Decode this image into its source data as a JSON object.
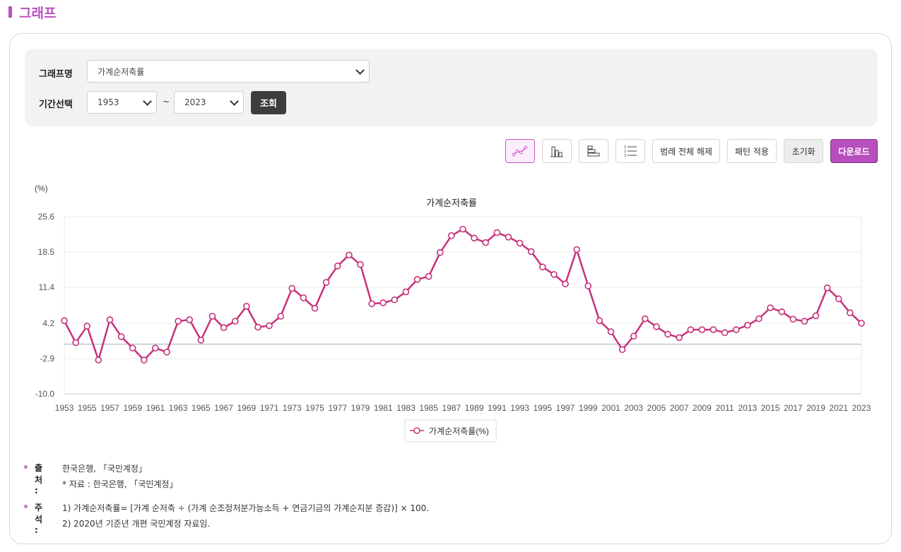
{
  "section": {
    "title": "그래프"
  },
  "search": {
    "graph_label": "그래프명",
    "graph_value": "가계순저축률",
    "period_label": "기간선택",
    "start_year": "1953",
    "end_year": "2023",
    "tilde": "~",
    "search_button": "조회"
  },
  "toolbar": {
    "line_icon": "line-chart-icon",
    "bar_icon": "bar-chart-icon",
    "hbar_icon": "horizontal-bar-chart-icon",
    "list_icon": "numbered-list-icon",
    "legend_clear": "범례 전체 해제",
    "pattern": "패턴 적용",
    "reset": "초기화",
    "download": "다운로드"
  },
  "chart_data": {
    "type": "line",
    "title": "가계순저축률",
    "unit_label": "(%)",
    "ylim": [
      -10.0,
      25.6
    ],
    "yticks": [
      "25.6",
      "18.5",
      "11.4",
      "4.2",
      "-2.9",
      "-10.0"
    ],
    "x": [
      1953,
      1954,
      1955,
      1956,
      1957,
      1958,
      1959,
      1960,
      1961,
      1962,
      1963,
      1964,
      1965,
      1966,
      1967,
      1968,
      1969,
      1970,
      1971,
      1972,
      1973,
      1974,
      1975,
      1976,
      1977,
      1978,
      1979,
      1980,
      1981,
      1982,
      1983,
      1984,
      1985,
      1986,
      1987,
      1988,
      1989,
      1990,
      1991,
      1992,
      1993,
      1994,
      1995,
      1996,
      1997,
      1998,
      1999,
      2000,
      2001,
      2002,
      2003,
      2004,
      2005,
      2006,
      2007,
      2008,
      2009,
      2010,
      2011,
      2012,
      2013,
      2014,
      2015,
      2016,
      2017,
      2018,
      2019,
      2020,
      2021,
      2022,
      2023
    ],
    "xtick_labels": [
      "1953",
      "1955",
      "1957",
      "1959",
      "1961",
      "1963",
      "1965",
      "1967",
      "1969",
      "1971",
      "1973",
      "1975",
      "1977",
      "1979",
      "1981",
      "1983",
      "1985",
      "1987",
      "1989",
      "1991",
      "1993",
      "1995",
      "1997",
      "1999",
      "2001",
      "2003",
      "2005",
      "2007",
      "2009",
      "2011",
      "2013",
      "2015",
      "2017",
      "2019",
      "2021",
      "2023"
    ],
    "series": [
      {
        "name": "가계순저축률(%)",
        "color": "#c8317a",
        "values": [
          4.7,
          0.3,
          3.6,
          -3.2,
          4.9,
          1.5,
          -0.8,
          -3.2,
          -0.8,
          -1.6,
          4.6,
          4.9,
          0.8,
          5.6,
          3.3,
          4.6,
          7.6,
          3.4,
          3.7,
          5.6,
          11.2,
          9.3,
          7.2,
          12.4,
          15.7,
          17.9,
          16.0,
          8.1,
          8.3,
          8.9,
          10.5,
          13.0,
          13.6,
          18.4,
          21.8,
          23.1,
          21.3,
          20.4,
          22.4,
          21.5,
          20.3,
          18.6,
          15.5,
          14.0,
          12.1,
          19.0,
          11.7,
          4.7,
          2.5,
          -1.1,
          1.6,
          5.1,
          3.5,
          2.0,
          1.3,
          2.9,
          2.9,
          2.9,
          2.3,
          2.9,
          3.8,
          5.1,
          7.3,
          6.5,
          5.0,
          4.6,
          5.7,
          11.3,
          9.1,
          6.3,
          4.2
        ]
      }
    ],
    "grid": true,
    "legend_position": "bottom"
  },
  "footnotes": {
    "source_key": "출처 :",
    "source_line1": "한국은행, 「국민계정」",
    "source_line2": "* 자료 : 한국은행, 「국민계정」",
    "note_key": "주석 :",
    "note_line1": "1) 가계순저축률= [가계 순저축 ÷ (가계 순조정처분가능소득 + 연금기금의 가계순지분 증감)] × 100.",
    "note_line2": "2) 2020년 기준년 개편 국민계정 자료임."
  }
}
